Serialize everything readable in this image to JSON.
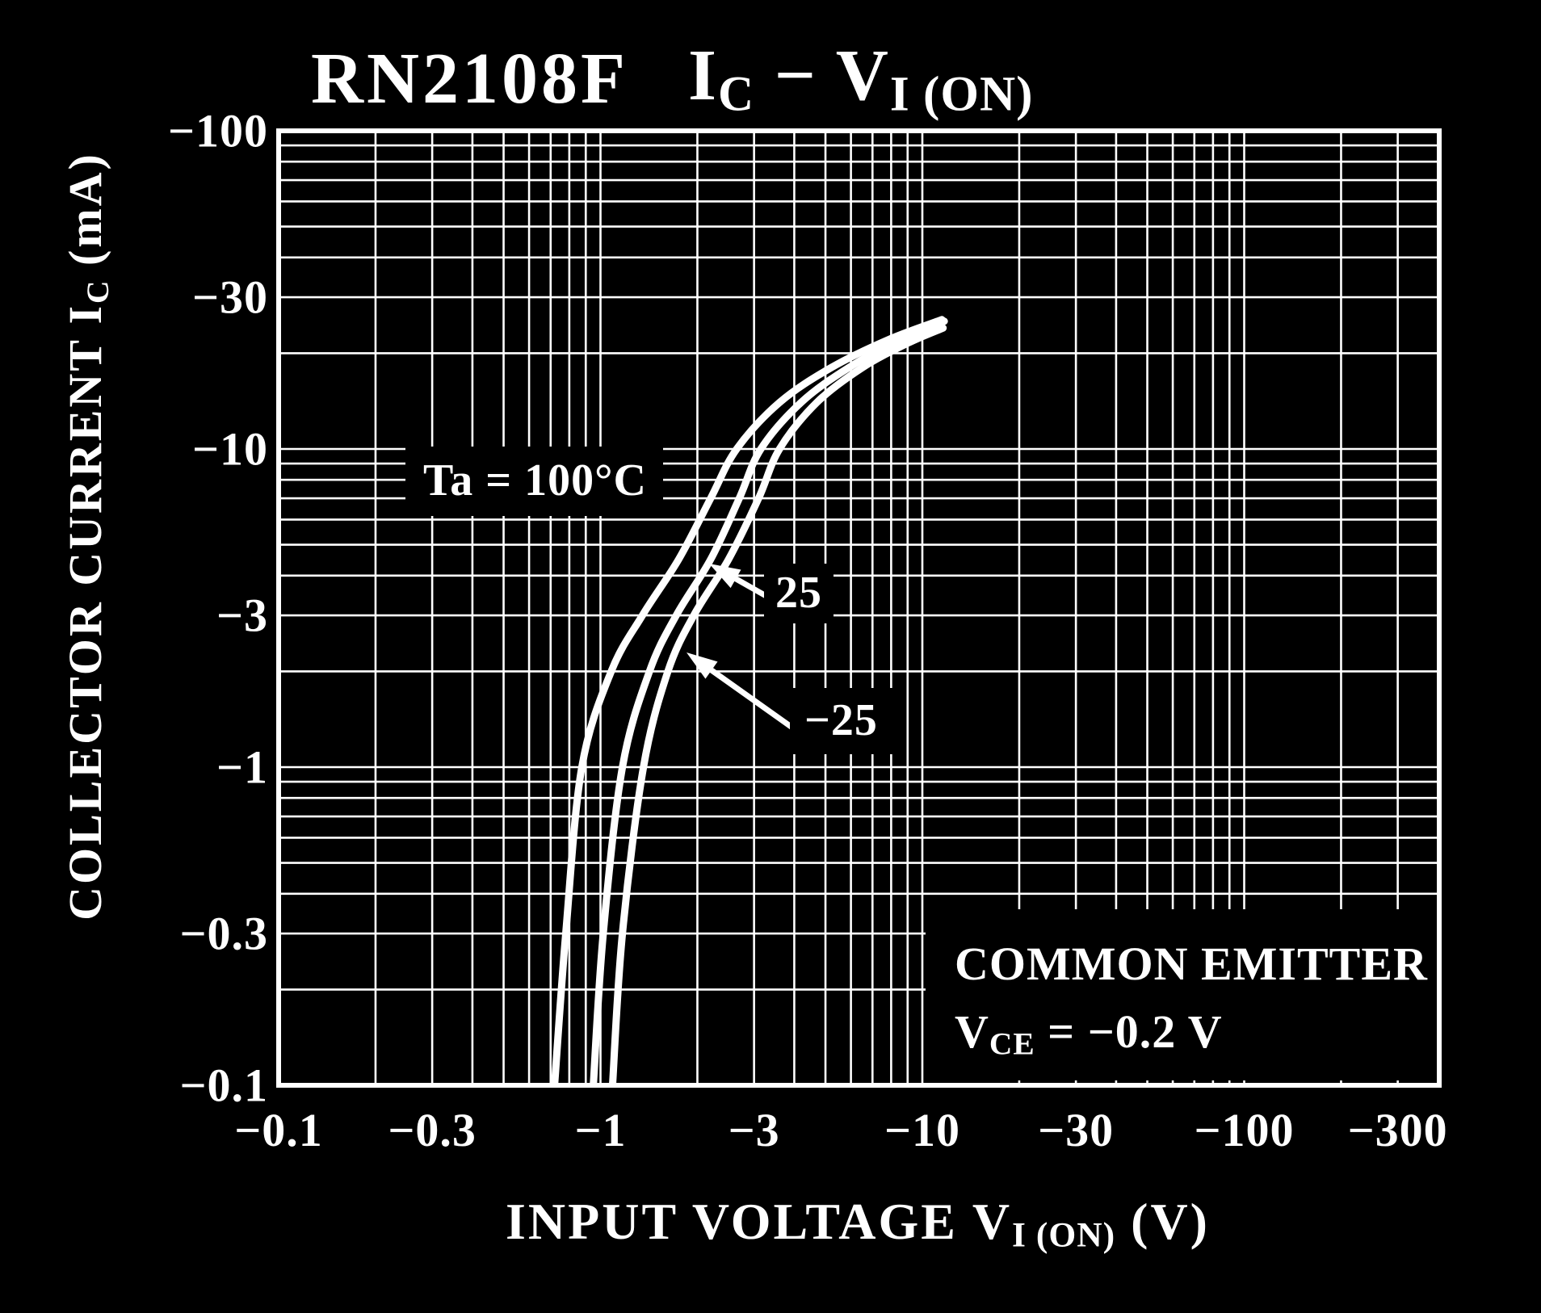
{
  "colors": {
    "background": "#000000",
    "foreground": "#ffffff"
  },
  "header": {
    "part_number": "RN2108F",
    "title_segments": [
      {
        "t": "I"
      },
      {
        "t": "C",
        "sub": true
      },
      {
        "t": "  −  "
      },
      {
        "t": "V"
      },
      {
        "t": "I (ON)",
        "sub": true
      }
    ]
  },
  "axes": {
    "y_title_segments": [
      {
        "t": "COLLECTOR CURRENT   "
      },
      {
        "t": "I"
      },
      {
        "t": "C",
        "sub": true
      },
      {
        "t": "   (mA)"
      }
    ],
    "x_title_segments": [
      {
        "t": "INPUT VOLTAGE   "
      },
      {
        "t": "V"
      },
      {
        "t": "I (ON)",
        "sub": true
      },
      {
        "t": "   (V)"
      }
    ]
  },
  "annotations": {
    "ta100_label": "Ta = 100°C",
    "t25_label": "25",
    "tm25_label": "−25",
    "conditions_line1": "COMMON EMITTER",
    "conditions_line2_segments": [
      {
        "t": "V"
      },
      {
        "t": "CE",
        "sub": true
      },
      {
        "t": " = −0.2 V"
      }
    ]
  },
  "chart_data": {
    "type": "line",
    "title": "RN2108F  IC − VI(ON)",
    "xlabel": "INPUT VOLTAGE VI(ON) (V)",
    "ylabel": "COLLECTOR CURRENT IC (mA)",
    "x_scale": "log",
    "y_scale": "log",
    "x_range_V": [
      -0.1,
      -400
    ],
    "y_range_mA": [
      -100,
      -0.1
    ],
    "grid": "full log-log graph paper, minor lines at every integer multiple per decade",
    "legend_position": "inline labels with arrows",
    "x_ticks": [
      {
        "label": "−0.1",
        "value": 0.1
      },
      {
        "label": "−0.3",
        "value": 0.3
      },
      {
        "label": "−1",
        "value": 1
      },
      {
        "label": "−3",
        "value": 3
      },
      {
        "label": "−10",
        "value": 10
      },
      {
        "label": "−30",
        "value": 30
      },
      {
        "label": "−100",
        "value": 100
      },
      {
        "label": "−300",
        "value": 300
      }
    ],
    "y_ticks": [
      {
        "label": "−100",
        "value": 100
      },
      {
        "label": "−30",
        "value": 30
      },
      {
        "label": "−10",
        "value": 10
      },
      {
        "label": "−3",
        "value": 3
      },
      {
        "label": "−1",
        "value": 1
      },
      {
        "label": "−0.3",
        "value": 0.3
      },
      {
        "label": "−0.1",
        "value": 0.1
      }
    ],
    "conditions": "COMMON EMITTER, VCE = −0.2 V",
    "series": [
      {
        "name": "Ta = 100°C",
        "temperature_C": 100,
        "points_V_mA": [
          [
            -0.72,
            -0.1
          ],
          [
            -0.78,
            -0.3
          ],
          [
            -0.875,
            -1
          ],
          [
            -1.08,
            -2
          ],
          [
            -1.35,
            -3
          ],
          [
            -1.75,
            -4.5
          ],
          [
            -2.2,
            -7
          ],
          [
            -2.65,
            -10
          ],
          [
            -3.6,
            -14
          ],
          [
            -5.2,
            -18
          ],
          [
            -7.8,
            -22
          ],
          [
            -11.5,
            -25.5
          ]
        ]
      },
      {
        "name": "25",
        "temperature_C": 25,
        "points_V_mA": [
          [
            -0.95,
            -0.1
          ],
          [
            -1.02,
            -0.3
          ],
          [
            -1.17,
            -1
          ],
          [
            -1.42,
            -2
          ],
          [
            -1.72,
            -3
          ],
          [
            -2.2,
            -4.5
          ],
          [
            -2.7,
            -7
          ],
          [
            -3.15,
            -10
          ],
          [
            -4.2,
            -14
          ],
          [
            -5.9,
            -18
          ],
          [
            -8.5,
            -22
          ],
          [
            -11.7,
            -25.2
          ]
        ]
      },
      {
        "name": "−25",
        "temperature_C": -25,
        "points_V_mA": [
          [
            -1.09,
            -0.1
          ],
          [
            -1.17,
            -0.3
          ],
          [
            -1.36,
            -1
          ],
          [
            -1.62,
            -2
          ],
          [
            -1.95,
            -3
          ],
          [
            -2.5,
            -4.5
          ],
          [
            -3.1,
            -7
          ],
          [
            -3.6,
            -10
          ],
          [
            -4.7,
            -14
          ],
          [
            -6.5,
            -18
          ],
          [
            -9.0,
            -21.5
          ],
          [
            -11.6,
            -24
          ]
        ]
      }
    ]
  }
}
